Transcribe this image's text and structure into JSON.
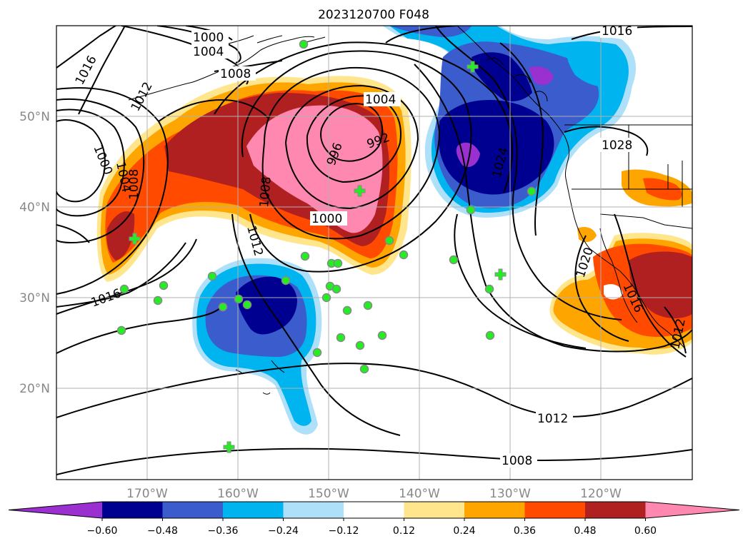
{
  "title": "2023120700 F048",
  "lon_labels": [
    "170°W",
    "160°W",
    "150°W",
    "140°W",
    "130°W",
    "120°W"
  ],
  "lat_labels": [
    "50°N",
    "40°N",
    "30°N",
    "20°N"
  ],
  "contour_labels": {
    "c1000a": "1000",
    "c1004a": "1004",
    "c1008a": "1008",
    "c1016a": "1016",
    "c1012a": "1012",
    "c1004b": "1004",
    "c992": "992",
    "c996": "996",
    "c1008b": "1008",
    "c1000b": "1000",
    "c1000c": "1000",
    "c1004c": "1004",
    "c1008c": "1008",
    "c1016b": "1016",
    "c1012b": "1012",
    "c1024": "1024",
    "c1028": "1028",
    "c1016c": "1016",
    "c1020": "1020",
    "c1016d": "1016",
    "c1012c": "1012",
    "c1012d": "1012",
    "c1008d": "1008"
  },
  "colorbar": {
    "ticks": [
      "−0.60",
      "−0.48",
      "−0.36",
      "−0.24",
      "−0.12",
      "0.12",
      "0.24",
      "0.36",
      "0.48",
      "0.60"
    ],
    "colors": [
      "#9b30d0",
      "#000090",
      "#3a5ccc",
      "#00b4f0",
      "#aee0fa",
      "#ffffff",
      "#ffe68c",
      "#ffa500",
      "#ff4a00",
      "#b02020",
      "#ff88b0"
    ],
    "extend": "both"
  },
  "markers": {
    "circle_color": "#22ee22",
    "cross_color": "#22ee22"
  }
}
